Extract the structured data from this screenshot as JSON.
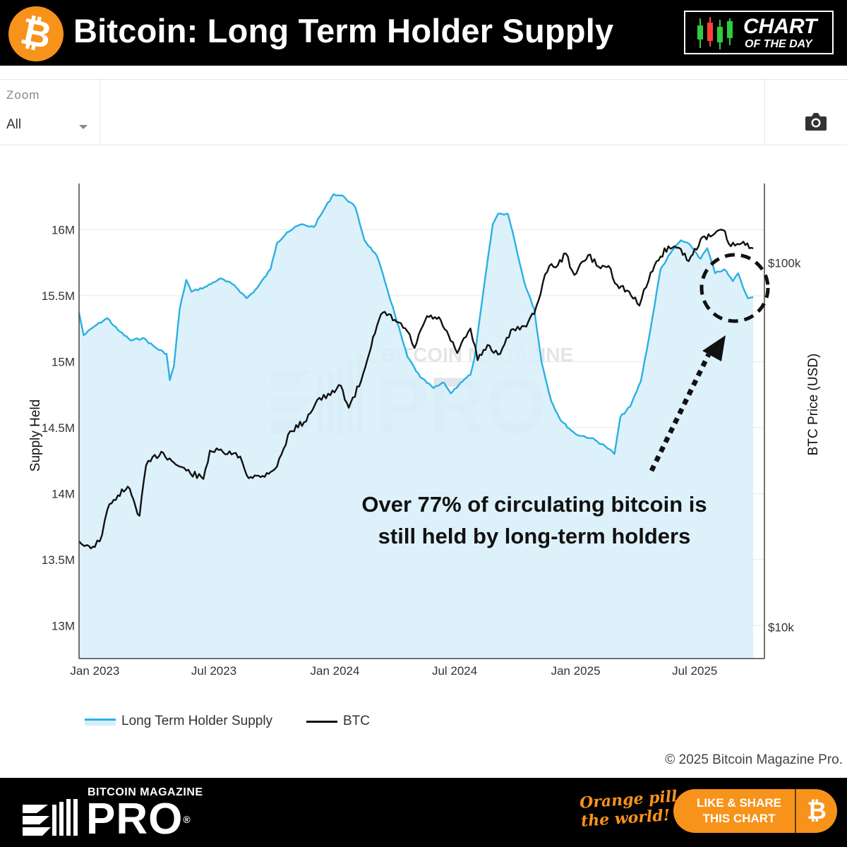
{
  "header": {
    "title": "Bitcoin: Long Term Holder Supply",
    "logo_glyph": "₿",
    "badge_line1": "CHART",
    "badge_line2": "OF THE DAY"
  },
  "toolbar": {
    "zoom_label": "Zoom",
    "zoom_value": "All",
    "camera_icon": "camera-icon"
  },
  "chart_data": {
    "type": "area+line",
    "title": "",
    "y_left_label": "Supply Held",
    "y_right_label": "BTC Price (USD)",
    "y_left_ticks": [
      "13M",
      "13.5M",
      "14M",
      "14.5M",
      "15M",
      "15.5M",
      "16M"
    ],
    "y_left_tick_values": [
      13.0,
      13.5,
      14.0,
      14.5,
      15.0,
      15.5,
      16.0
    ],
    "y_left_range": [
      12.75,
      16.35
    ],
    "y_right_ticks": [
      "$10k",
      "$100k"
    ],
    "y_right_tick_values": [
      10000,
      100000
    ],
    "y_right_scale": "log",
    "y_right_range": [
      8200,
      165000
    ],
    "x_ticks": [
      "Jan 2023",
      "Jul 2023",
      "Jan 2024",
      "Jul 2024",
      "Jan 2025",
      "Jul 2025"
    ],
    "x_tick_values": [
      "2023-01-01",
      "2023-07-01",
      "2024-01-01",
      "2024-07-01",
      "2025-01-01",
      "2025-07-01"
    ],
    "x_range": [
      "2022-12-08",
      "2025-10-15"
    ],
    "grid": "horizontal",
    "legend_position": "bottom-left",
    "series": [
      {
        "name": "Long Term Holder Supply",
        "axis": "left",
        "units": "M BTC",
        "color": "#2ab0e2",
        "fill": "#d7eefa",
        "points": [
          [
            "2022-12-08",
            15.37
          ],
          [
            "2022-12-15",
            15.2
          ],
          [
            "2023-01-01",
            15.27
          ],
          [
            "2023-01-20",
            15.33
          ],
          [
            "2023-02-05",
            15.24
          ],
          [
            "2023-02-25",
            15.16
          ],
          [
            "2023-03-15",
            15.18
          ],
          [
            "2023-04-05",
            15.1
          ],
          [
            "2023-04-20",
            15.06
          ],
          [
            "2023-04-25",
            14.86
          ],
          [
            "2023-05-01",
            14.96
          ],
          [
            "2023-05-10",
            15.4
          ],
          [
            "2023-05-20",
            15.62
          ],
          [
            "2023-05-28",
            15.53
          ],
          [
            "2023-06-20",
            15.57
          ],
          [
            "2023-07-10",
            15.63
          ],
          [
            "2023-08-01",
            15.58
          ],
          [
            "2023-08-20",
            15.48
          ],
          [
            "2023-09-05",
            15.56
          ],
          [
            "2023-09-25",
            15.7
          ],
          [
            "2023-10-05",
            15.9
          ],
          [
            "2023-10-20",
            15.98
          ],
          [
            "2023-11-10",
            16.04
          ],
          [
            "2023-11-30",
            16.02
          ],
          [
            "2023-12-15",
            16.15
          ],
          [
            "2023-12-30",
            16.27
          ],
          [
            "2024-01-15",
            16.25
          ],
          [
            "2024-02-01",
            16.17
          ],
          [
            "2024-02-15",
            15.92
          ],
          [
            "2024-03-05",
            15.8
          ],
          [
            "2024-03-20",
            15.56
          ],
          [
            "2024-04-01",
            15.36
          ],
          [
            "2024-04-20",
            15.04
          ],
          [
            "2024-05-10",
            14.88
          ],
          [
            "2024-05-30",
            14.8
          ],
          [
            "2024-06-15",
            14.84
          ],
          [
            "2024-06-25",
            14.76
          ],
          [
            "2024-07-10",
            14.84
          ],
          [
            "2024-07-25",
            14.9
          ],
          [
            "2024-08-01",
            15.05
          ],
          [
            "2024-08-15",
            15.58
          ],
          [
            "2024-08-28",
            16.04
          ],
          [
            "2024-09-05",
            16.12
          ],
          [
            "2024-09-20",
            16.12
          ],
          [
            "2024-10-01",
            15.9
          ],
          [
            "2024-10-15",
            15.6
          ],
          [
            "2024-10-30",
            15.4
          ],
          [
            "2024-11-10",
            15.0
          ],
          [
            "2024-11-25",
            14.7
          ],
          [
            "2024-12-10",
            14.55
          ],
          [
            "2025-01-01",
            14.45
          ],
          [
            "2025-01-25",
            14.42
          ],
          [
            "2025-02-15",
            14.36
          ],
          [
            "2025-03-01",
            14.3
          ],
          [
            "2025-03-10",
            14.58
          ],
          [
            "2025-03-25",
            14.66
          ],
          [
            "2025-04-10",
            14.85
          ],
          [
            "2025-04-25",
            15.25
          ],
          [
            "2025-05-10",
            15.7
          ],
          [
            "2025-05-25",
            15.82
          ],
          [
            "2025-06-10",
            15.92
          ],
          [
            "2025-06-25",
            15.88
          ],
          [
            "2025-07-10",
            15.78
          ],
          [
            "2025-07-20",
            15.86
          ],
          [
            "2025-08-01",
            15.67
          ],
          [
            "2025-08-15",
            15.7
          ],
          [
            "2025-08-28",
            15.61
          ],
          [
            "2025-09-05",
            15.67
          ],
          [
            "2025-09-12",
            15.57
          ],
          [
            "2025-09-20",
            15.48
          ],
          [
            "2025-09-28",
            15.49
          ]
        ]
      },
      {
        "name": "BTC",
        "axis": "right",
        "units": "USD",
        "color": "#111111",
        "points": [
          [
            "2022-12-08",
            17200
          ],
          [
            "2022-12-12",
            16900
          ],
          [
            "2022-12-20",
            16800
          ],
          [
            "2023-01-01",
            16600
          ],
          [
            "2023-01-12",
            17900
          ],
          [
            "2023-01-20",
            21000
          ],
          [
            "2023-02-05",
            23000
          ],
          [
            "2023-02-20",
            24300
          ],
          [
            "2023-03-10",
            20200
          ],
          [
            "2023-03-20",
            27800
          ],
          [
            "2023-04-12",
            30300
          ],
          [
            "2023-05-01",
            28300
          ],
          [
            "2023-05-20",
            26900
          ],
          [
            "2023-06-15",
            25500
          ],
          [
            "2023-06-25",
            30500
          ],
          [
            "2023-07-15",
            30200
          ],
          [
            "2023-08-10",
            29400
          ],
          [
            "2023-08-20",
            26100
          ],
          [
            "2023-09-10",
            25800
          ],
          [
            "2023-10-05",
            27600
          ],
          [
            "2023-10-25",
            34500
          ],
          [
            "2023-11-15",
            36500
          ],
          [
            "2023-12-05",
            42000
          ],
          [
            "2023-12-25",
            43300
          ],
          [
            "2024-01-10",
            46000
          ],
          [
            "2024-01-22",
            40000
          ],
          [
            "2024-02-10",
            47500
          ],
          [
            "2024-02-28",
            62500
          ],
          [
            "2024-03-14",
            73000
          ],
          [
            "2024-04-01",
            69700
          ],
          [
            "2024-04-20",
            64900
          ],
          [
            "2024-05-01",
            58300
          ],
          [
            "2024-05-20",
            71400
          ],
          [
            "2024-06-10",
            69500
          ],
          [
            "2024-06-25",
            61000
          ],
          [
            "2024-07-05",
            56500
          ],
          [
            "2024-07-25",
            66000
          ],
          [
            "2024-08-05",
            54000
          ],
          [
            "2024-08-20",
            59500
          ],
          [
            "2024-09-05",
            56000
          ],
          [
            "2024-09-28",
            65800
          ],
          [
            "2024-10-15",
            67000
          ],
          [
            "2024-10-30",
            72300
          ],
          [
            "2024-11-12",
            88000
          ],
          [
            "2024-11-22",
            98000
          ],
          [
            "2024-12-05",
            98500
          ],
          [
            "2024-12-17",
            106000
          ],
          [
            "2024-12-30",
            92600
          ],
          [
            "2025-01-20",
            105000
          ],
          [
            "2025-02-05",
            97500
          ],
          [
            "2025-02-20",
            98000
          ],
          [
            "2025-03-05",
            87000
          ],
          [
            "2025-03-20",
            84000
          ],
          [
            "2025-04-08",
            76300
          ],
          [
            "2025-04-25",
            94000
          ],
          [
            "2025-05-10",
            104000
          ],
          [
            "2025-05-22",
            111000
          ],
          [
            "2025-06-10",
            109000
          ],
          [
            "2025-06-22",
            101000
          ],
          [
            "2025-07-10",
            116000
          ],
          [
            "2025-07-25",
            118000
          ],
          [
            "2025-08-13",
            123000
          ],
          [
            "2025-08-25",
            111000
          ],
          [
            "2025-09-10",
            113000
          ],
          [
            "2025-09-28",
            109500
          ]
        ]
      }
    ],
    "annotations": [
      "Over 77% of circulating bitcoin is",
      "still held by long-term holders"
    ],
    "watermark": [
      "BITCOIN MAGAZINE",
      "PRO"
    ]
  },
  "legend": {
    "items": [
      "Long Term Holder Supply",
      "BTC"
    ]
  },
  "copyright": "© 2025 Bitcoin Magazine Pro.",
  "footer": {
    "brand_small": "BITCOIN MAGAZINE",
    "brand_big": "PRO",
    "brand_mark": "®",
    "slogan_line1": "Orange pill",
    "slogan_line2": "the world!",
    "share_line1": "LIKE & SHARE",
    "share_line2": "THIS CHART",
    "share_glyph": "₿"
  }
}
